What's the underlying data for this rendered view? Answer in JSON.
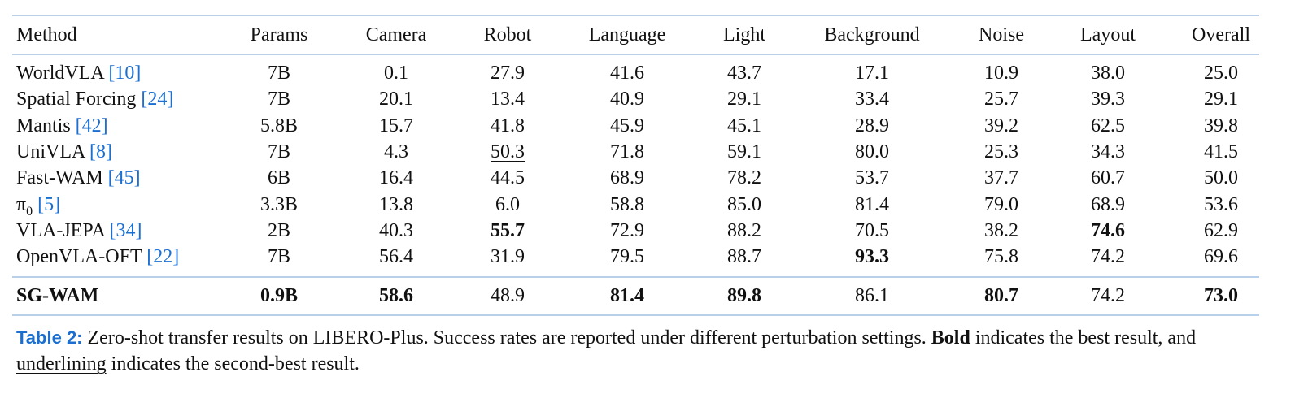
{
  "table": {
    "header": [
      "Method",
      "Params",
      "Camera",
      "Robot",
      "Language",
      "Light",
      "Background",
      "Noise",
      "Layout",
      "Overall"
    ],
    "rows": [
      {
        "method": {
          "name": "WorldVLA",
          "ref": "[10]"
        },
        "cells": [
          "7B",
          "0.1",
          "27.9",
          "41.6",
          "43.7",
          "17.1",
          "10.9",
          "38.0",
          "25.0"
        ]
      },
      {
        "method": {
          "name": "Spatial Forcing",
          "ref": "[24]"
        },
        "cells": [
          "7B",
          "20.1",
          "13.4",
          "40.9",
          "29.1",
          "33.4",
          "25.7",
          "39.3",
          "29.1"
        ]
      },
      {
        "method": {
          "name": "Mantis",
          "ref": "[42]"
        },
        "cells": [
          "5.8B",
          "15.7",
          "41.8",
          "45.9",
          "45.1",
          "28.9",
          "39.2",
          "62.5",
          "39.8"
        ]
      },
      {
        "method": {
          "name": "UniVLA",
          "ref": "[8]"
        },
        "cells": [
          "7B",
          "4.3",
          "50.3",
          "71.8",
          "59.1",
          "80.0",
          "25.3",
          "34.3",
          "41.5"
        ]
      },
      {
        "method": {
          "name": "Fast-WAM",
          "ref": "[45]"
        },
        "cells": [
          "6B",
          "16.4",
          "44.5",
          "68.9",
          "78.2",
          "53.7",
          "37.7",
          "60.7",
          "50.0"
        ]
      },
      {
        "method": {
          "name": "π",
          "sub": "0",
          "ref": "[5]"
        },
        "cells": [
          "3.3B",
          "13.8",
          "6.0",
          "58.8",
          "85.0",
          "81.4",
          "79.0",
          "68.9",
          "53.6"
        ]
      },
      {
        "method": {
          "name": "VLA-JEPA",
          "ref": "[34]"
        },
        "cells": [
          "2B",
          "40.3",
          "55.7",
          "72.9",
          "88.2",
          "70.5",
          "38.2",
          "74.6",
          "62.9"
        ]
      },
      {
        "method": {
          "name": "OpenVLA-OFT",
          "ref": "[22]"
        },
        "cells": [
          "7B",
          "56.4",
          "31.9",
          "79.5",
          "88.7",
          "93.3",
          "75.8",
          "74.2",
          "69.6"
        ]
      }
    ],
    "final_row": {
      "method": {
        "name": "SG-WAM"
      },
      "cells": [
        "0.9B",
        "58.6",
        "48.9",
        "81.4",
        "89.8",
        "86.1",
        "80.7",
        "74.2",
        "73.0"
      ]
    }
  },
  "caption": {
    "label": "Table 2:",
    "text1": "Zero-shot transfer results on LIBERO-Plus. Success rates are reported under different perturbation settings.",
    "bold_word": "Bold",
    "text2": "indicates the best result, and",
    "underline_word": "underlining",
    "text3": "indicates the second-best result."
  }
}
